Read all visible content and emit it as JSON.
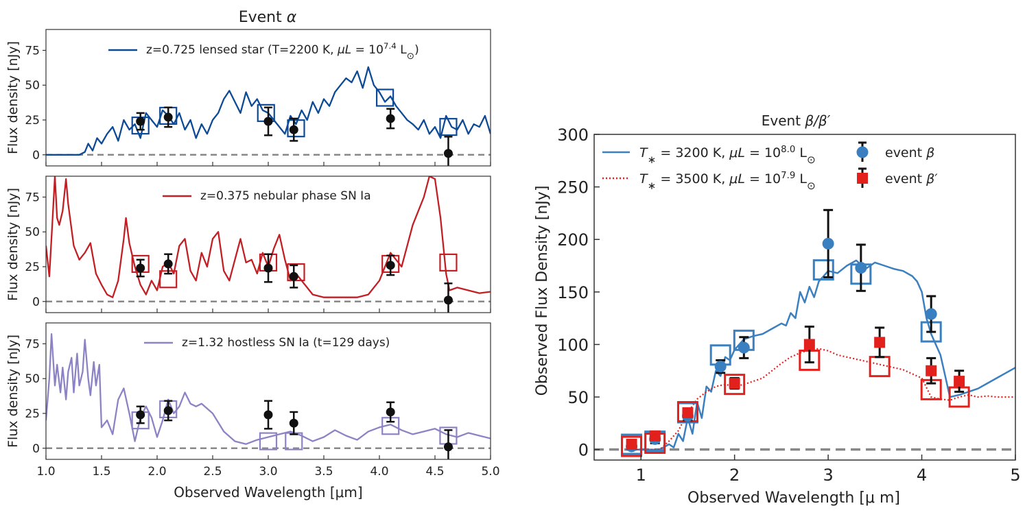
{
  "colors": {
    "alpha_star": "#0d4a96",
    "alpha_sn_nebular": "#c21f25",
    "alpha_sn_hostless": "#8c83c4",
    "beta_blue": "#3a7fbf",
    "beta_red": "#e3211c",
    "data_black": "#111111",
    "zero_line": "#888888"
  },
  "chart_data": [
    {
      "type": "line",
      "title": "Event α",
      "xlabel": "Observed Wavelength [μm]",
      "xlim": [
        1.0,
        5.0
      ],
      "xticks": [
        "1.0",
        "1.5",
        "2.0",
        "2.5",
        "3.0",
        "3.5",
        "4.0",
        "4.5",
        "5.0"
      ],
      "photometry": {
        "x": [
          1.85,
          2.1,
          3.0,
          3.23,
          4.1,
          4.62
        ],
        "y": [
          24,
          27,
          24,
          18,
          26,
          1
        ],
        "err": [
          6,
          7,
          10,
          8,
          7,
          12
        ]
      },
      "panels": [
        {
          "ylabel": "Flux density [nJy]",
          "ylim": [
            -8,
            90
          ],
          "yticks": [
            "0",
            "25",
            "50",
            "75"
          ],
          "legend": "z=0.725 lensed star (T=2200 K, μL = 10^7.4 L⊙)",
          "legend_parts": [
            "z=0.725 lensed star (T=2200 K, ",
            "μL",
            " = 10",
            "7.4",
            " L",
            "⊙",
            ")"
          ],
          "model": {
            "x": [
              1.0,
              1.3,
              1.35,
              1.38,
              1.42,
              1.46,
              1.5,
              1.55,
              1.6,
              1.65,
              1.7,
              1.75,
              1.8,
              1.85,
              1.9,
              1.95,
              2.0,
              2.05,
              2.1,
              2.15,
              2.2,
              2.25,
              2.3,
              2.35,
              2.4,
              2.45,
              2.5,
              2.55,
              2.6,
              2.65,
              2.7,
              2.75,
              2.8,
              2.85,
              2.9,
              2.95,
              3.0,
              3.05,
              3.1,
              3.15,
              3.2,
              3.25,
              3.3,
              3.35,
              3.4,
              3.45,
              3.5,
              3.55,
              3.6,
              3.65,
              3.7,
              3.75,
              3.8,
              3.85,
              3.9,
              3.95,
              4.0,
              4.05,
              4.1,
              4.15,
              4.2,
              4.25,
              4.3,
              4.35,
              4.4,
              4.45,
              4.5,
              4.55,
              4.6,
              4.65,
              4.7,
              4.75,
              4.8,
              4.85,
              4.9,
              4.95,
              5.0
            ],
            "y": [
              0,
              0,
              2,
              8,
              3,
              12,
              8,
              15,
              20,
              10,
              25,
              18,
              22,
              12,
              30,
              25,
              20,
              32,
              28,
              22,
              30,
              18,
              25,
              12,
              22,
              15,
              25,
              30,
              40,
              46,
              38,
              30,
              45,
              35,
              40,
              32,
              30,
              25,
              20,
              15,
              28,
              22,
              32,
              25,
              38,
              30,
              40,
              35,
              45,
              50,
              55,
              52,
              60,
              48,
              63,
              50,
              45,
              38,
              42,
              35,
              30,
              25,
              22,
              18,
              25,
              15,
              20,
              12,
              28,
              20,
              18,
              25,
              15,
              22,
              20,
              28,
              15
            ]
          },
          "boxes": {
            "x": [
              1.85,
              2.1,
              2.98,
              3.25,
              4.05,
              4.62
            ],
            "y": [
              21,
              28,
              30,
              19,
              41,
              20
            ]
          }
        },
        {
          "ylabel": "Flux density [nJy]",
          "ylim": [
            -8,
            90
          ],
          "yticks": [
            "0",
            "25",
            "50",
            "75"
          ],
          "legend": "z=0.375 nebular phase SN Ia",
          "model": {
            "x": [
              1.0,
              1.03,
              1.06,
              1.08,
              1.1,
              1.12,
              1.15,
              1.18,
              1.2,
              1.25,
              1.3,
              1.35,
              1.4,
              1.45,
              1.5,
              1.55,
              1.6,
              1.65,
              1.7,
              1.72,
              1.75,
              1.8,
              1.85,
              1.9,
              1.95,
              2.0,
              2.05,
              2.1,
              2.15,
              2.2,
              2.25,
              2.3,
              2.35,
              2.4,
              2.45,
              2.5,
              2.55,
              2.6,
              2.65,
              2.7,
              2.75,
              2.8,
              2.85,
              2.9,
              2.95,
              3.0,
              3.05,
              3.1,
              3.15,
              3.2,
              3.25,
              3.3,
              3.35,
              3.4,
              3.5,
              3.6,
              3.7,
              3.8,
              3.9,
              4.0,
              4.05,
              4.1,
              4.15,
              4.2,
              4.3,
              4.4,
              4.45,
              4.5,
              4.55,
              4.6,
              4.63,
              4.7,
              4.8,
              4.9,
              5.0
            ],
            "y": [
              40,
              18,
              60,
              90,
              60,
              55,
              65,
              88,
              70,
              40,
              30,
              35,
              42,
              20,
              12,
              5,
              3,
              15,
              45,
              60,
              42,
              25,
              12,
              5,
              15,
              8,
              25,
              28,
              20,
              40,
              45,
              22,
              15,
              35,
              25,
              45,
              50,
              22,
              15,
              30,
              45,
              28,
              30,
              20,
              35,
              25,
              38,
              48,
              30,
              15,
              20,
              15,
              10,
              5,
              3,
              3,
              3,
              3,
              5,
              15,
              25,
              35,
              30,
              25,
              55,
              75,
              90,
              88,
              60,
              20,
              8,
              10,
              8,
              6,
              7
            ]
          },
          "boxes": {
            "x": [
              1.85,
              2.1,
              3.0,
              3.25,
              4.1,
              4.62
            ],
            "y": [
              27,
              16,
              28,
              21,
              27,
              28
            ]
          }
        },
        {
          "ylabel": "Flux density [nJy]",
          "ylim": [
            -8,
            90
          ],
          "yticks": [
            "0",
            "25",
            "50",
            "75"
          ],
          "xlabel": "Observed Wavelength [μm]",
          "legend": "z=1.32 hostless SN Ia (t=129 days)",
          "model": {
            "x": [
              1.0,
              1.03,
              1.05,
              1.08,
              1.1,
              1.13,
              1.15,
              1.18,
              1.2,
              1.23,
              1.25,
              1.28,
              1.3,
              1.33,
              1.35,
              1.38,
              1.4,
              1.43,
              1.45,
              1.48,
              1.5,
              1.55,
              1.6,
              1.65,
              1.7,
              1.75,
              1.8,
              1.85,
              1.9,
              1.95,
              2.0,
              2.05,
              2.1,
              2.15,
              2.2,
              2.25,
              2.3,
              2.35,
              2.4,
              2.5,
              2.6,
              2.7,
              2.8,
              2.9,
              3.0,
              3.1,
              3.2,
              3.3,
              3.4,
              3.5,
              3.6,
              3.7,
              3.8,
              3.9,
              4.0,
              4.1,
              4.2,
              4.3,
              4.4,
              4.5,
              4.6,
              4.7,
              4.8,
              4.9,
              5.0
            ],
            "y": [
              20,
              50,
              82,
              45,
              60,
              40,
              58,
              35,
              55,
              65,
              40,
              68,
              45,
              55,
              78,
              50,
              38,
              62,
              45,
              60,
              15,
              20,
              10,
              35,
              43,
              25,
              5,
              22,
              30,
              22,
              8,
              20,
              35,
              25,
              30,
              40,
              32,
              30,
              32,
              25,
              12,
              5,
              3,
              6,
              8,
              10,
              12,
              9,
              5,
              8,
              13,
              9,
              6,
              12,
              15,
              17,
              13,
              10,
              12,
              14,
              10,
              8,
              11,
              9,
              7
            ]
          },
          "boxes": {
            "x": [
              1.85,
              2.1,
              3.0,
              3.23,
              4.1,
              4.62
            ],
            "y": [
              20,
              28,
              5,
              5,
              16,
              9
            ]
          }
        }
      ]
    },
    {
      "type": "line",
      "title": "Event β/β′",
      "xlabel": "Observed Wavelength [μ m]",
      "ylabel": "Observed Flux Density [nJy]",
      "xlim": [
        0.5,
        5.0
      ],
      "ylim": [
        -10,
        300
      ],
      "xticks": [
        "1",
        "2",
        "3",
        "4",
        "5"
      ],
      "yticks": [
        "0",
        "50",
        "100",
        "150",
        "200",
        "250",
        "300"
      ],
      "legend": [
        {
          "label": "T∗ = 3200 K, μL = 10^8.0 L⊙",
          "parts": [
            "T",
            "∗",
            " = 3200 K, ",
            "μL",
            " = 10",
            "8.0",
            " L",
            "⊙"
          ],
          "marker_label": "event β",
          "marker_parts": [
            "event ",
            "β"
          ]
        },
        {
          "label": "T∗ = 3500 K, μL = 10^7.9 L⊙",
          "parts": [
            "T",
            "∗",
            " = 3500 K, ",
            "μL",
            " = 10",
            "7.9",
            " L",
            "⊙"
          ],
          "marker_label": "event β′",
          "marker_parts": [
            "event ",
            "β′"
          ]
        }
      ],
      "series": [
        {
          "name": "T∗ = 3200 K, μL = 10^8.0 L⊙",
          "style": "solid",
          "x": [
            0.85,
            1.2,
            1.3,
            1.35,
            1.4,
            1.45,
            1.5,
            1.55,
            1.6,
            1.65,
            1.7,
            1.75,
            1.8,
            1.85,
            1.9,
            1.95,
            2.0,
            2.1,
            2.2,
            2.3,
            2.4,
            2.5,
            2.55,
            2.6,
            2.65,
            2.7,
            2.75,
            2.8,
            2.85,
            2.9,
            2.95,
            3.0,
            3.1,
            3.2,
            3.3,
            3.4,
            3.5,
            3.6,
            3.7,
            3.8,
            3.9,
            3.95,
            4.0,
            4.05,
            4.1,
            4.15,
            4.2,
            4.25,
            4.3,
            4.4,
            4.5,
            4.6,
            4.7,
            4.8,
            4.9,
            5.0
          ],
          "y": [
            0,
            0,
            5,
            2,
            15,
            8,
            30,
            15,
            45,
            30,
            60,
            55,
            75,
            70,
            88,
            85,
            95,
            105,
            108,
            110,
            115,
            120,
            118,
            130,
            125,
            150,
            140,
            155,
            145,
            160,
            165,
            170,
            168,
            175,
            180,
            172,
            178,
            175,
            172,
            170,
            165,
            160,
            150,
            125,
            110,
            100,
            90,
            70,
            50,
            52,
            55,
            58,
            63,
            68,
            73,
            78
          ]
        },
        {
          "name": "T∗ = 3500 K, μL = 10^7.9 L⊙",
          "style": "dotted",
          "x": [
            0.85,
            1.2,
            1.3,
            1.4,
            1.5,
            1.6,
            1.7,
            1.8,
            1.9,
            2.0,
            2.1,
            2.2,
            2.3,
            2.4,
            2.5,
            2.6,
            2.7,
            2.8,
            2.9,
            3.0,
            3.1,
            3.2,
            3.3,
            3.4,
            3.5,
            3.6,
            3.7,
            3.8,
            3.9,
            4.0,
            4.1,
            4.2,
            4.3,
            4.4,
            4.5,
            4.6,
            4.7,
            4.8,
            4.9,
            5.0
          ],
          "y": [
            0,
            0,
            8,
            18,
            35,
            48,
            55,
            60,
            62,
            60,
            62,
            65,
            68,
            75,
            82,
            88,
            92,
            95,
            96,
            94,
            90,
            88,
            86,
            84,
            82,
            80,
            78,
            76,
            72,
            68,
            50,
            48,
            47,
            50,
            52,
            50,
            51,
            50,
            50,
            50
          ]
        },
        {
          "name": "event β",
          "style": "points",
          "x": [
            0.9,
            1.15,
            1.5,
            1.85,
            2.1,
            3.0,
            3.35,
            4.1
          ],
          "y": [
            3,
            10,
            32,
            79,
            97,
            196,
            173,
            129
          ],
          "err": [
            3,
            4,
            4,
            6,
            10,
            32,
            22,
            17
          ]
        },
        {
          "name": "event β′",
          "style": "points",
          "x": [
            0.9,
            1.15,
            1.5,
            2.0,
            2.8,
            3.55,
            4.1,
            4.4
          ],
          "y": [
            5,
            13,
            35,
            63,
            100,
            102,
            75,
            65
          ],
          "err": [
            3,
            4,
            4,
            5,
            17,
            14,
            12,
            10
          ]
        }
      ],
      "boxes": [
        {
          "color": "blue",
          "x": [
            0.9,
            1.15,
            1.5,
            1.85,
            2.1,
            2.95,
            3.35,
            4.1
          ],
          "y": [
            5,
            8,
            35,
            90,
            104,
            171,
            167,
            112
          ]
        },
        {
          "color": "red",
          "x": [
            0.9,
            1.15,
            1.5,
            2.0,
            2.8,
            3.55,
            4.1,
            4.4
          ],
          "y": [
            3,
            6,
            36,
            62,
            85,
            79,
            57,
            50
          ]
        }
      ]
    }
  ]
}
